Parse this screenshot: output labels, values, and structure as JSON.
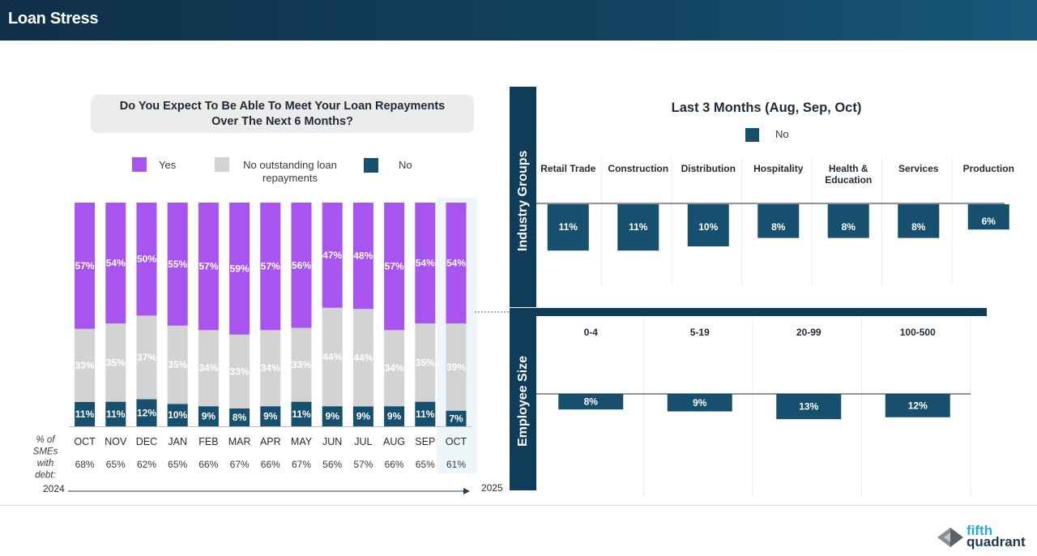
{
  "header": {
    "title": "Loan Stress"
  },
  "question": {
    "line1": "Do You Expect To Be Able To Meet Your Loan Repayments",
    "line2": "Over The Next 6 Months?"
  },
  "legend": {
    "yes": "Yes",
    "no_outstanding_line1": "No outstanding loan",
    "no_outstanding_line2": "repayments",
    "no": "No"
  },
  "colors": {
    "yes": "#a855f0",
    "no_outstanding": "#d3d3d3",
    "no": "#17506f",
    "dark_band": "#0f3c58"
  },
  "row_labels": {
    "debt_line1": "% of",
    "debt_line2": "SMEs",
    "debt_line3": "with",
    "debt_line4": "debt:"
  },
  "years": {
    "start": "2024",
    "end": "2025"
  },
  "right": {
    "title": "Last 3 Months (Aug, Sep, Oct)",
    "legend_no": "No",
    "industry_band": "Industry Groups",
    "employee_band": "Employee Size"
  },
  "chart_data": [
    {
      "type": "bar",
      "stacked": true,
      "title": "Do You Expect To Be Able To Meet Your Loan Repayments Over The Next 6 Months?",
      "categories": [
        "OCT",
        "NOV",
        "DEC",
        "JAN",
        "FEB",
        "MAR",
        "APR",
        "MAY",
        "JUN",
        "JUL",
        "AUG",
        "SEP",
        "OCT"
      ],
      "series": [
        {
          "name": "No",
          "values": [
            11,
            11,
            12,
            10,
            9,
            8,
            9,
            11,
            9,
            9,
            9,
            11,
            7
          ]
        },
        {
          "name": "No outstanding loan repayments",
          "values": [
            33,
            35,
            37,
            35,
            34,
            33,
            34,
            33,
            44,
            44,
            34,
            35,
            39
          ]
        },
        {
          "name": "Yes",
          "values": [
            57,
            54,
            50,
            55,
            57,
            59,
            57,
            56,
            47,
            48,
            57,
            54,
            54
          ]
        }
      ],
      "pct_smes_with_debt": [
        "68%",
        "65%",
        "62%",
        "65%",
        "66%",
        "67%",
        "66%",
        "67%",
        "56%",
        "57%",
        "66%",
        "65%",
        "61%"
      ],
      "highlight_category_index": 12,
      "ylim": [
        0,
        100
      ],
      "legend_position": "top"
    },
    {
      "type": "bar",
      "title": "Last 3 Months (Aug, Sep, Oct)",
      "categories": [
        "Retail Trade",
        "Construction",
        "Distribution",
        "Hospitality",
        "Health & Education",
        "Services",
        "Production"
      ],
      "category_lines": [
        [
          "Retail Trade"
        ],
        [
          "Construction"
        ],
        [
          "Distribution"
        ],
        [
          "Hospitality"
        ],
        [
          "Health &",
          "Education"
        ],
        [
          "Services"
        ],
        [
          "Production"
        ]
      ],
      "series": [
        {
          "name": "No",
          "values": [
            11,
            11,
            10,
            8,
            8,
            8,
            6
          ]
        }
      ],
      "group_label": "Industry Groups",
      "ylim": [
        0,
        20
      ]
    },
    {
      "type": "bar",
      "categories": [
        "0-4",
        "5-19",
        "20-99",
        "100-500"
      ],
      "series": [
        {
          "name": "No",
          "values": [
            8,
            9,
            13,
            12
          ]
        }
      ],
      "group_label": "Employee Size",
      "ylim": [
        0,
        20
      ]
    }
  ]
}
